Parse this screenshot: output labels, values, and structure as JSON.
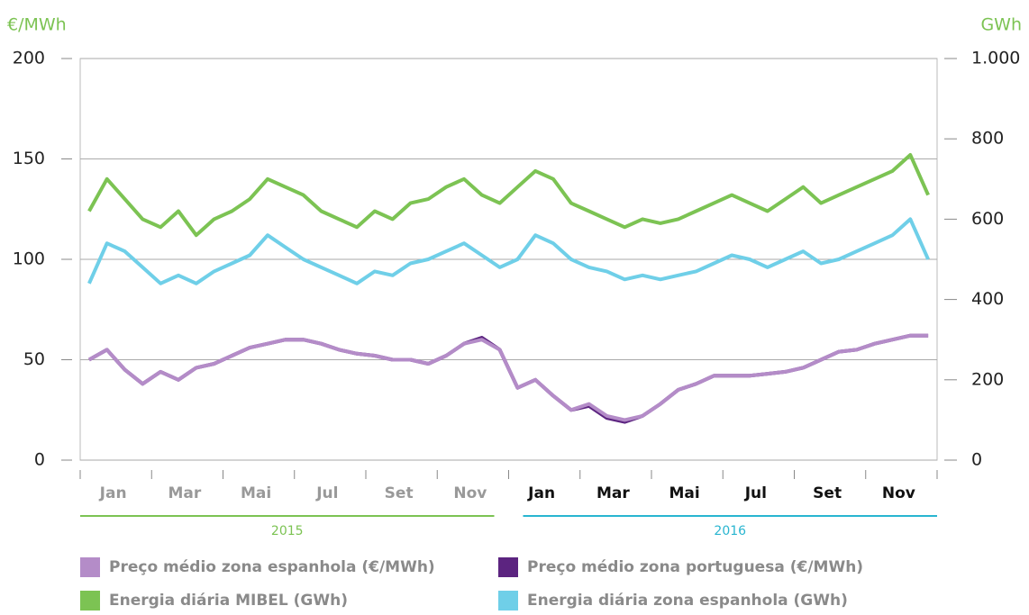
{
  "chart_data": {
    "type": "line",
    "y_label": "€/MWh",
    "y2_label": "GWh",
    "categories": [
      "Jan",
      null,
      null,
      null,
      "Mar",
      null,
      null,
      null,
      "Mai",
      null,
      null,
      null,
      "Jul",
      null,
      null,
      null,
      "Set",
      null,
      null,
      null,
      "Nov",
      null,
      null,
      null,
      "Jan",
      null,
      null,
      null,
      "Mar",
      null,
      null,
      null,
      "Mai",
      null,
      null,
      null,
      "Jul",
      null,
      null,
      null,
      "Set",
      null,
      null,
      null,
      "Nov",
      null,
      null,
      null
    ],
    "years": [
      {
        "label": "2015",
        "color": "#7cc353"
      },
      {
        "label": "2016",
        "color": "#29b5d0"
      }
    ],
    "ylim": [
      0,
      200
    ],
    "yticks": [
      0,
      50,
      100,
      150,
      200
    ],
    "y2lim": [
      0,
      1000
    ],
    "y2ticks": [
      0,
      200,
      400,
      600,
      800,
      {
        "value": 1000,
        "label": "1.000"
      }
    ],
    "grid": true,
    "series": [
      {
        "name": "Energia diária MIBEL (GWh)",
        "color": "#7cc353",
        "axis": "y2",
        "values": [
          620,
          700,
          650,
          600,
          580,
          620,
          560,
          600,
          620,
          650,
          700,
          680,
          660,
          620,
          600,
          580,
          620,
          600,
          640,
          650,
          680,
          700,
          660,
          640,
          680,
          720,
          700,
          640,
          620,
          600,
          580,
          600,
          590,
          600,
          620,
          640,
          660,
          640,
          620,
          650,
          680,
          640,
          660,
          680,
          700,
          720,
          760,
          660
        ]
      },
      {
        "name": "Energia diária zona espanhola (GWh)",
        "color": "#6fcfe8",
        "axis": "y2",
        "values": [
          440,
          540,
          520,
          480,
          440,
          460,
          440,
          470,
          490,
          510,
          560,
          530,
          500,
          480,
          460,
          440,
          470,
          460,
          490,
          500,
          520,
          540,
          510,
          480,
          500,
          560,
          540,
          500,
          480,
          470,
          450,
          460,
          450,
          460,
          470,
          490,
          510,
          500,
          480,
          500,
          520,
          490,
          500,
          520,
          540,
          560,
          600,
          500
        ]
      },
      {
        "name": "Preço médio zona portuguesa (€/MWh)",
        "color": "#5c2480",
        "values": [
          50,
          55,
          45,
          38,
          44,
          40,
          46,
          48,
          52,
          56,
          58,
          60,
          60,
          58,
          55,
          53,
          52,
          50,
          50,
          48,
          52,
          58,
          61,
          55,
          36,
          40,
          32,
          25,
          27,
          21,
          19,
          22,
          28,
          35,
          38,
          42,
          42,
          42,
          43,
          44,
          46,
          50,
          54,
          55,
          58,
          60,
          62,
          62
        ]
      },
      {
        "name": "Preço médio zona espanhola (€/MWh)",
        "color": "#b48cc8",
        "values": [
          50,
          55,
          45,
          38,
          44,
          40,
          46,
          48,
          52,
          56,
          58,
          60,
          60,
          58,
          55,
          53,
          52,
          50,
          50,
          48,
          52,
          58,
          60,
          55,
          36,
          40,
          32,
          25,
          28,
          22,
          20,
          22,
          28,
          35,
          38,
          42,
          42,
          42,
          43,
          44,
          46,
          50,
          54,
          55,
          58,
          60,
          62,
          62
        ]
      }
    ]
  }
}
